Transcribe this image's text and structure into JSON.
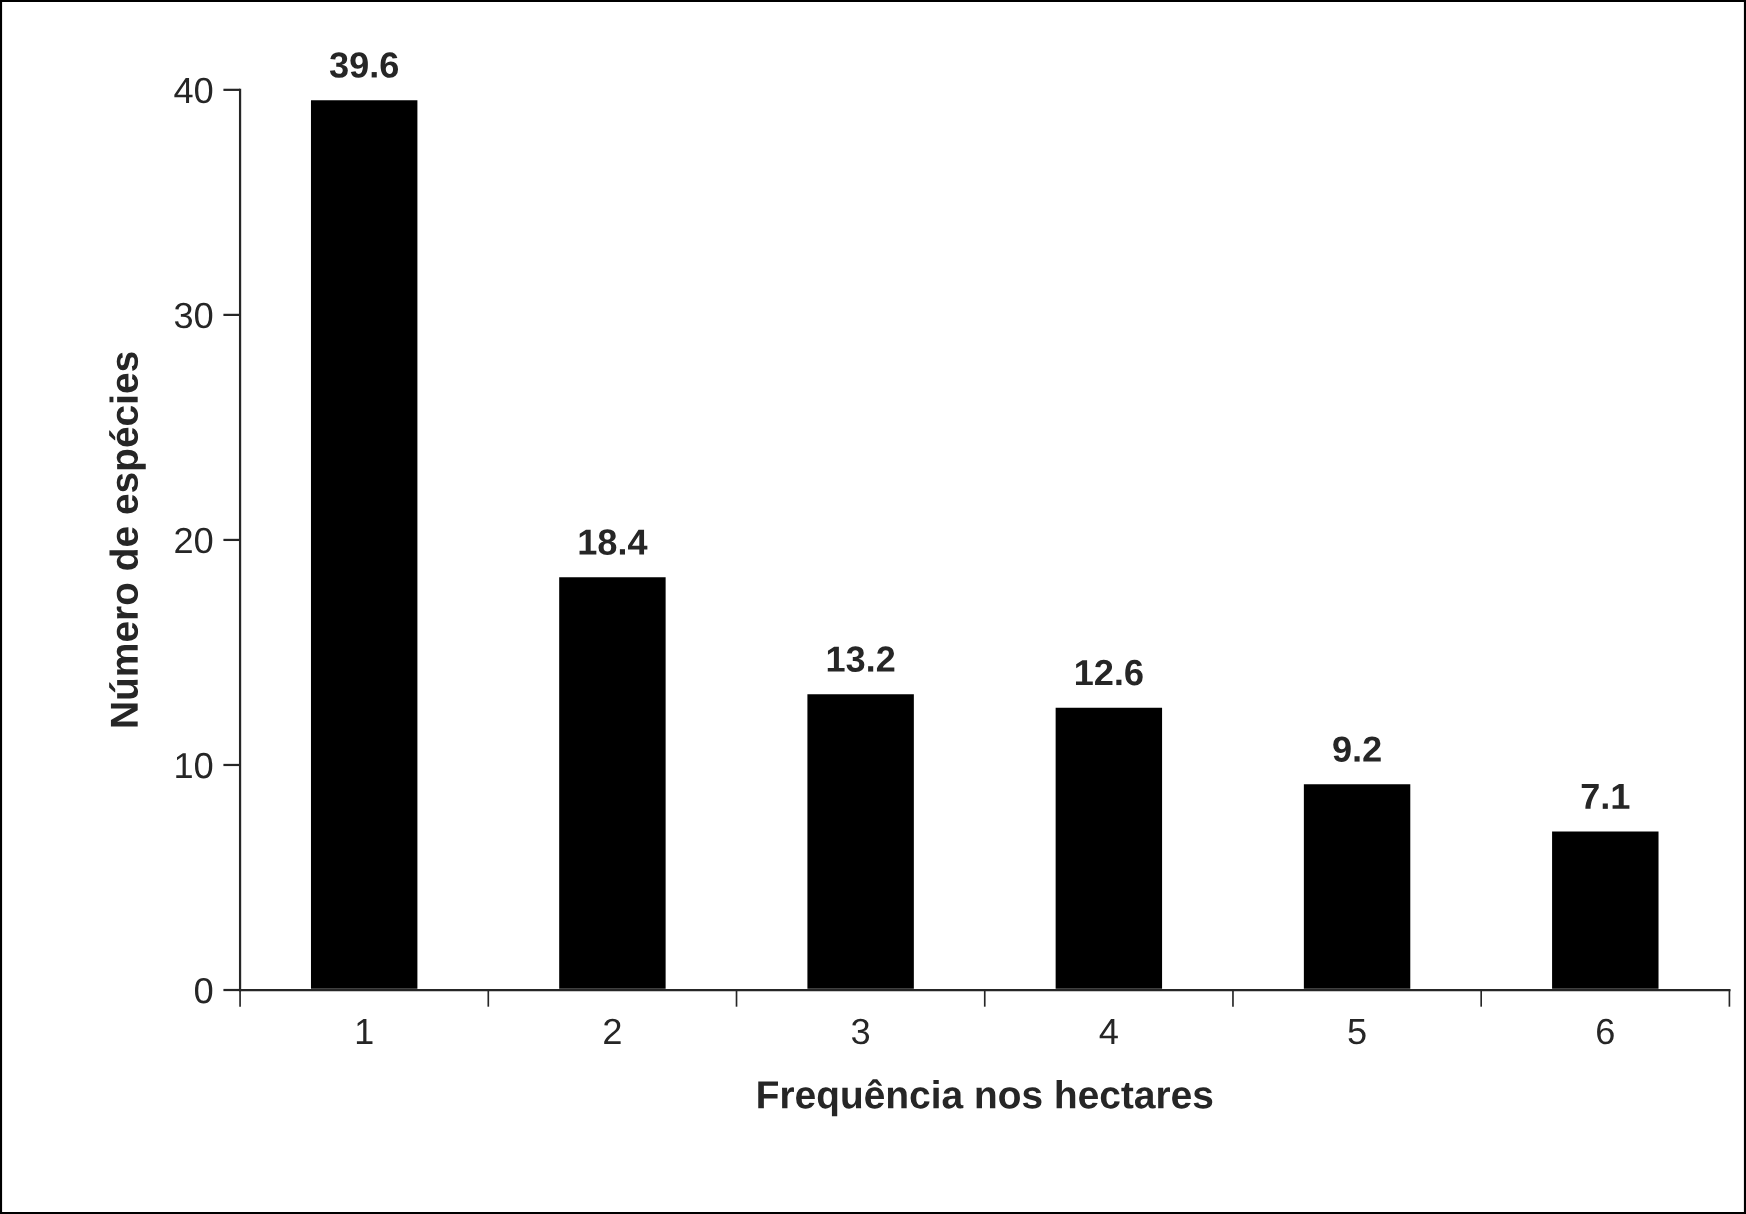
{
  "chart_data": {
    "type": "bar",
    "xlabel": "Frequência nos hectares",
    "ylabel": "Número de espécies",
    "categories": [
      "1",
      "2",
      "3",
      "4",
      "5",
      "6"
    ],
    "values": [
      39.6,
      18.4,
      13.2,
      12.6,
      9.2,
      7.1
    ],
    "color": "#000000",
    "ylim": [
      0,
      40
    ],
    "yticks": [
      0,
      10,
      20,
      30,
      40
    ],
    "grid": false,
    "data_labels": true
  }
}
